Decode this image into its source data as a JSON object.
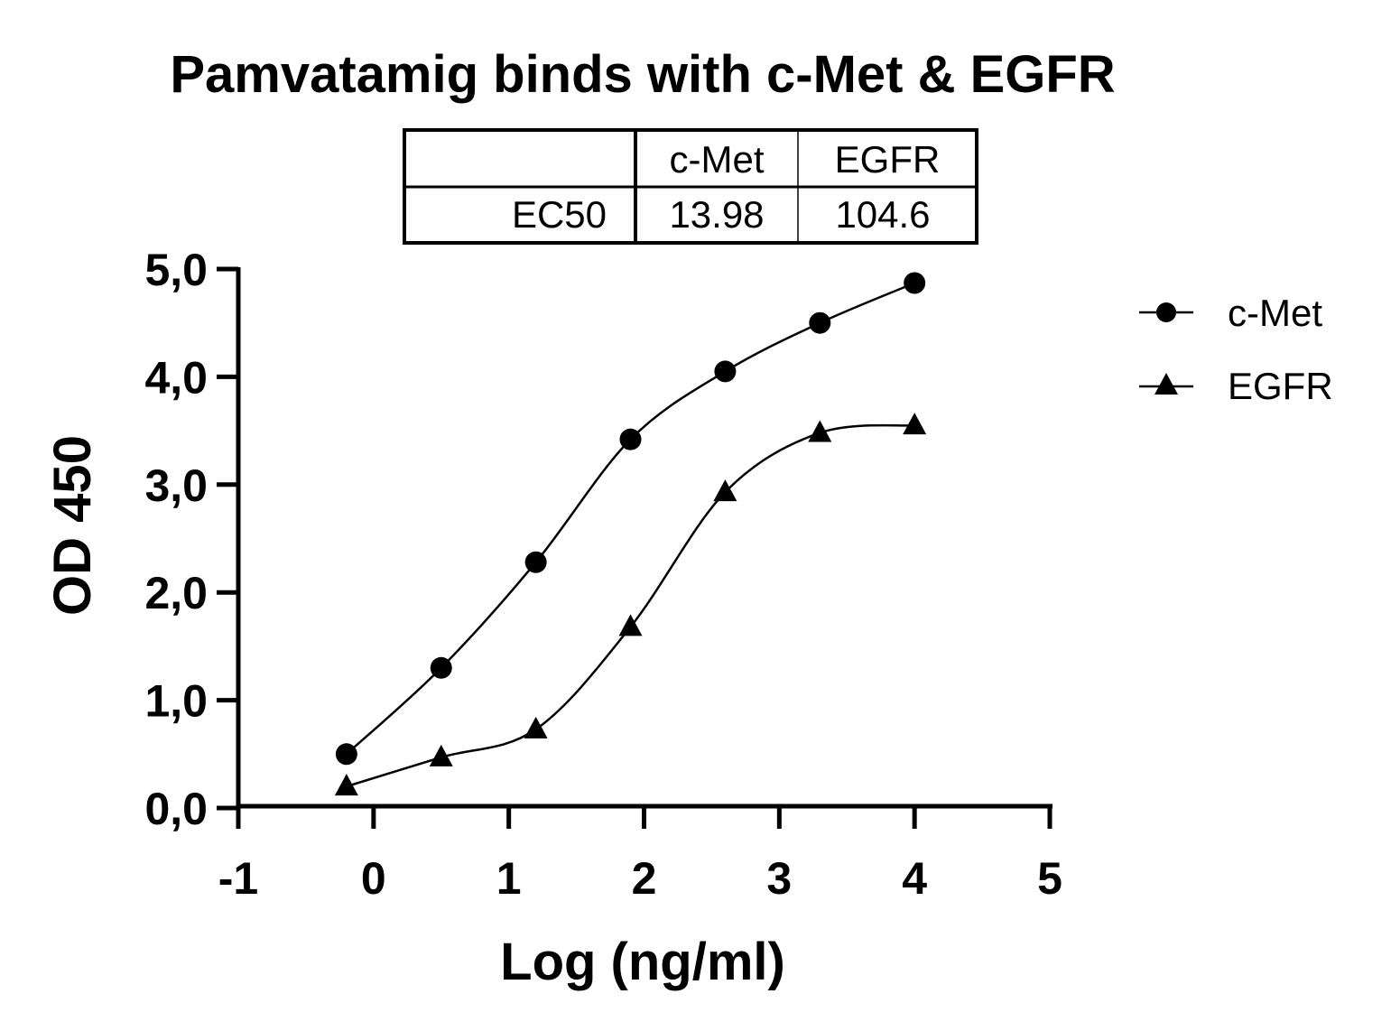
{
  "chart_data": {
    "type": "scatter",
    "title": "Pamvatamig binds with c-Met & EGFR",
    "xlabel": "Log (ng/ml)",
    "ylabel": "OD 450",
    "xlim": [
      -1,
      5
    ],
    "ylim": [
      0,
      5
    ],
    "x_ticks": [
      "-1",
      "0",
      "1",
      "2",
      "3",
      "4",
      "5"
    ],
    "y_ticks": [
      "0,0",
      "1,0",
      "2,0",
      "3,0",
      "4,0",
      "5,0"
    ],
    "legend_position": "right",
    "grid": false,
    "series": [
      {
        "name": "c-Met",
        "marker": "circle",
        "x": [
          -0.2,
          0.5,
          1.2,
          1.9,
          2.6,
          3.3,
          4.0
        ],
        "y": [
          0.5,
          1.3,
          2.28,
          3.42,
          4.05,
          4.5,
          4.87
        ],
        "fit_curve": true
      },
      {
        "name": "EGFR",
        "marker": "triangle",
        "x": [
          -0.2,
          0.5,
          1.2,
          1.9,
          2.6,
          3.3,
          4.0
        ],
        "y": [
          0.2,
          0.47,
          0.73,
          1.68,
          2.93,
          3.48,
          3.55
        ],
        "fit_curve": true
      }
    ],
    "ec50_table": {
      "headers": [
        "",
        "c-Met",
        "EGFR"
      ],
      "rows": [
        [
          "EC50",
          "13.98",
          "104.6"
        ]
      ]
    }
  }
}
